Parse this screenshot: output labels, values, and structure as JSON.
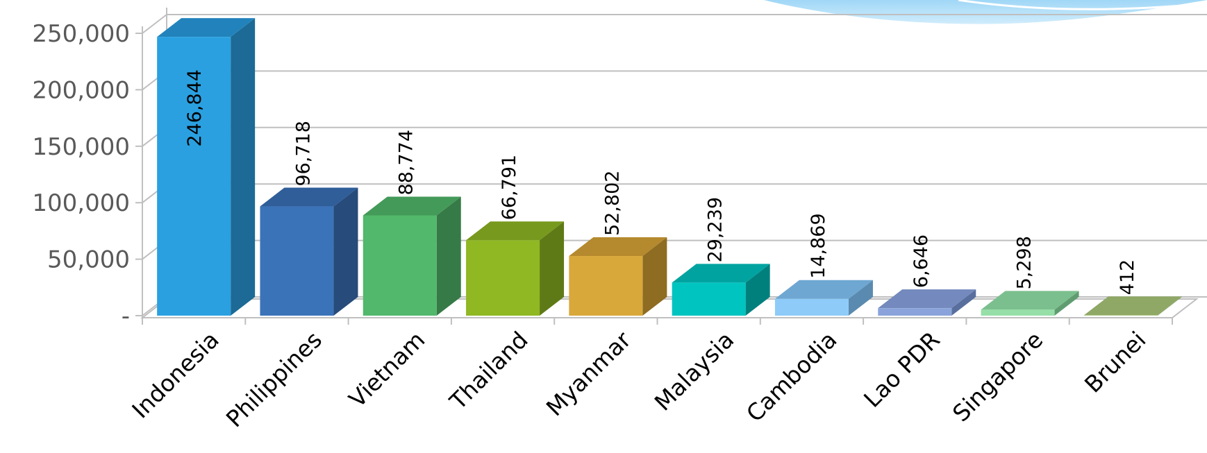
{
  "chart_data": {
    "type": "bar",
    "categories": [
      "Indonesia",
      "Philippines",
      "Vietnam",
      "Thailand",
      "Myanmar",
      "Malaysia",
      "Cambodia",
      "Lao PDR",
      "Singapore",
      "Brunei"
    ],
    "values": [
      246844,
      96718,
      88774,
      66791,
      52802,
      29239,
      14869,
      6646,
      5298,
      412
    ],
    "data_labels": [
      "246,844",
      "96,718",
      "88,774",
      "66,791",
      "52,802",
      "29,239",
      "14,869",
      "6,646",
      "5,298",
      "412"
    ],
    "ylim": [
      0,
      250000
    ],
    "yticks": [
      0,
      50000,
      100000,
      150000,
      200000,
      250000
    ],
    "ytick_labels": [
      "-",
      "50,000",
      "100,000",
      "150,000",
      "200,000",
      "250,000"
    ],
    "grid": true,
    "legend": "none",
    "style": "3d-column",
    "colors": [
      {
        "front": "#2AA0E0",
        "side": "#1C6A95",
        "top": "#2283BC"
      },
      {
        "front": "#3B73B9",
        "side": "#274B7A",
        "top": "#2F5E99"
      },
      {
        "front": "#52B86B",
        "side": "#367A47",
        "top": "#449A59"
      },
      {
        "front": "#8FB823",
        "side": "#5E7A16",
        "top": "#77991D"
      },
      {
        "front": "#D8A83A",
        "side": "#8E6C22",
        "top": "#B5892D"
      },
      {
        "front": "#00C4C0",
        "side": "#00807D",
        "top": "#00A3A0"
      },
      {
        "front": "#8ECBF8",
        "side": "#5A8AAF",
        "top": "#6EA7D2"
      },
      {
        "front": "#8AA4DB",
        "side": "#586F9E",
        "top": "#7489BD"
      },
      {
        "front": "#96DFA9",
        "side": "#5F9D70",
        "top": "#7CBF8E"
      },
      {
        "front": "#B5D18A",
        "side": "#738C55",
        "top": "#8FA866"
      }
    ]
  }
}
